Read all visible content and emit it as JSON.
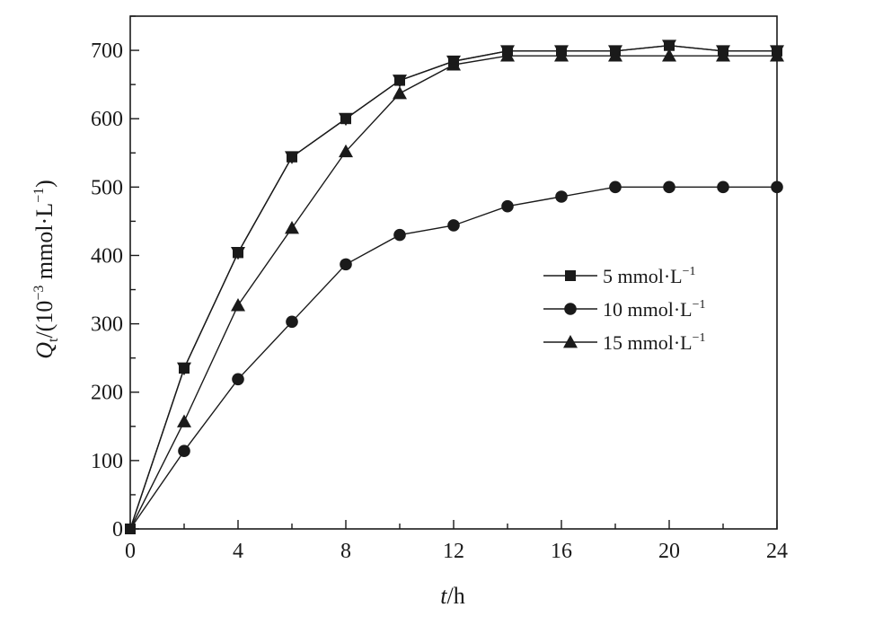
{
  "chart_data": {
    "type": "line",
    "xlabel": {
      "italic": "t",
      "rest": "/h"
    },
    "ylabel": {
      "italic": "Q",
      "sub": "t",
      "open": "/(10",
      "exp1": "−3",
      "mid": " mmol·L",
      "exp2": "−1",
      "close": ")"
    },
    "xlim": [
      0,
      24
    ],
    "ylim": [
      0,
      750
    ],
    "x_ticks": [
      0,
      4,
      8,
      12,
      16,
      20,
      24
    ],
    "y_ticks": [
      0,
      100,
      200,
      300,
      400,
      500,
      600,
      700
    ],
    "x_minor_step": 2,
    "y_minor_step": 50,
    "legend_position": "center-right",
    "series": [
      {
        "name": "5 mmol·L",
        "name_sup": "−1",
        "marker": "square",
        "x": [
          0,
          2,
          4,
          6,
          8,
          10,
          12,
          14,
          16,
          18,
          20,
          22,
          24
        ],
        "y": [
          0,
          235,
          404,
          544,
          600,
          656,
          684,
          699,
          699,
          699,
          707,
          699,
          699
        ]
      },
      {
        "name": "10 mmol·L",
        "name_sup": "−1",
        "marker": "circle",
        "x": [
          0,
          2,
          4,
          6,
          8,
          10,
          12,
          14,
          16,
          18,
          20,
          22,
          24
        ],
        "y": [
          0,
          114,
          219,
          303,
          387,
          430,
          444,
          472,
          486,
          500,
          500,
          500,
          500
        ]
      },
      {
        "name": "15 mmol·L",
        "name_sup": "−1",
        "marker": "triangle-up",
        "x": [
          0,
          2,
          4,
          6,
          8,
          10,
          12,
          14,
          16,
          18,
          20,
          22,
          24
        ],
        "y": [
          0,
          157,
          327,
          440,
          552,
          637,
          679,
          692,
          692,
          692,
          692,
          692,
          692
        ]
      },
      {
        "name": "",
        "marker": "triangle-down",
        "x": [
          0,
          2,
          4,
          6,
          8,
          10,
          12,
          14,
          16,
          18,
          20,
          22,
          24
        ],
        "y": [
          0,
          235,
          404,
          544,
          600,
          656,
          684,
          699,
          699,
          699,
          707,
          699,
          699
        ]
      }
    ]
  }
}
